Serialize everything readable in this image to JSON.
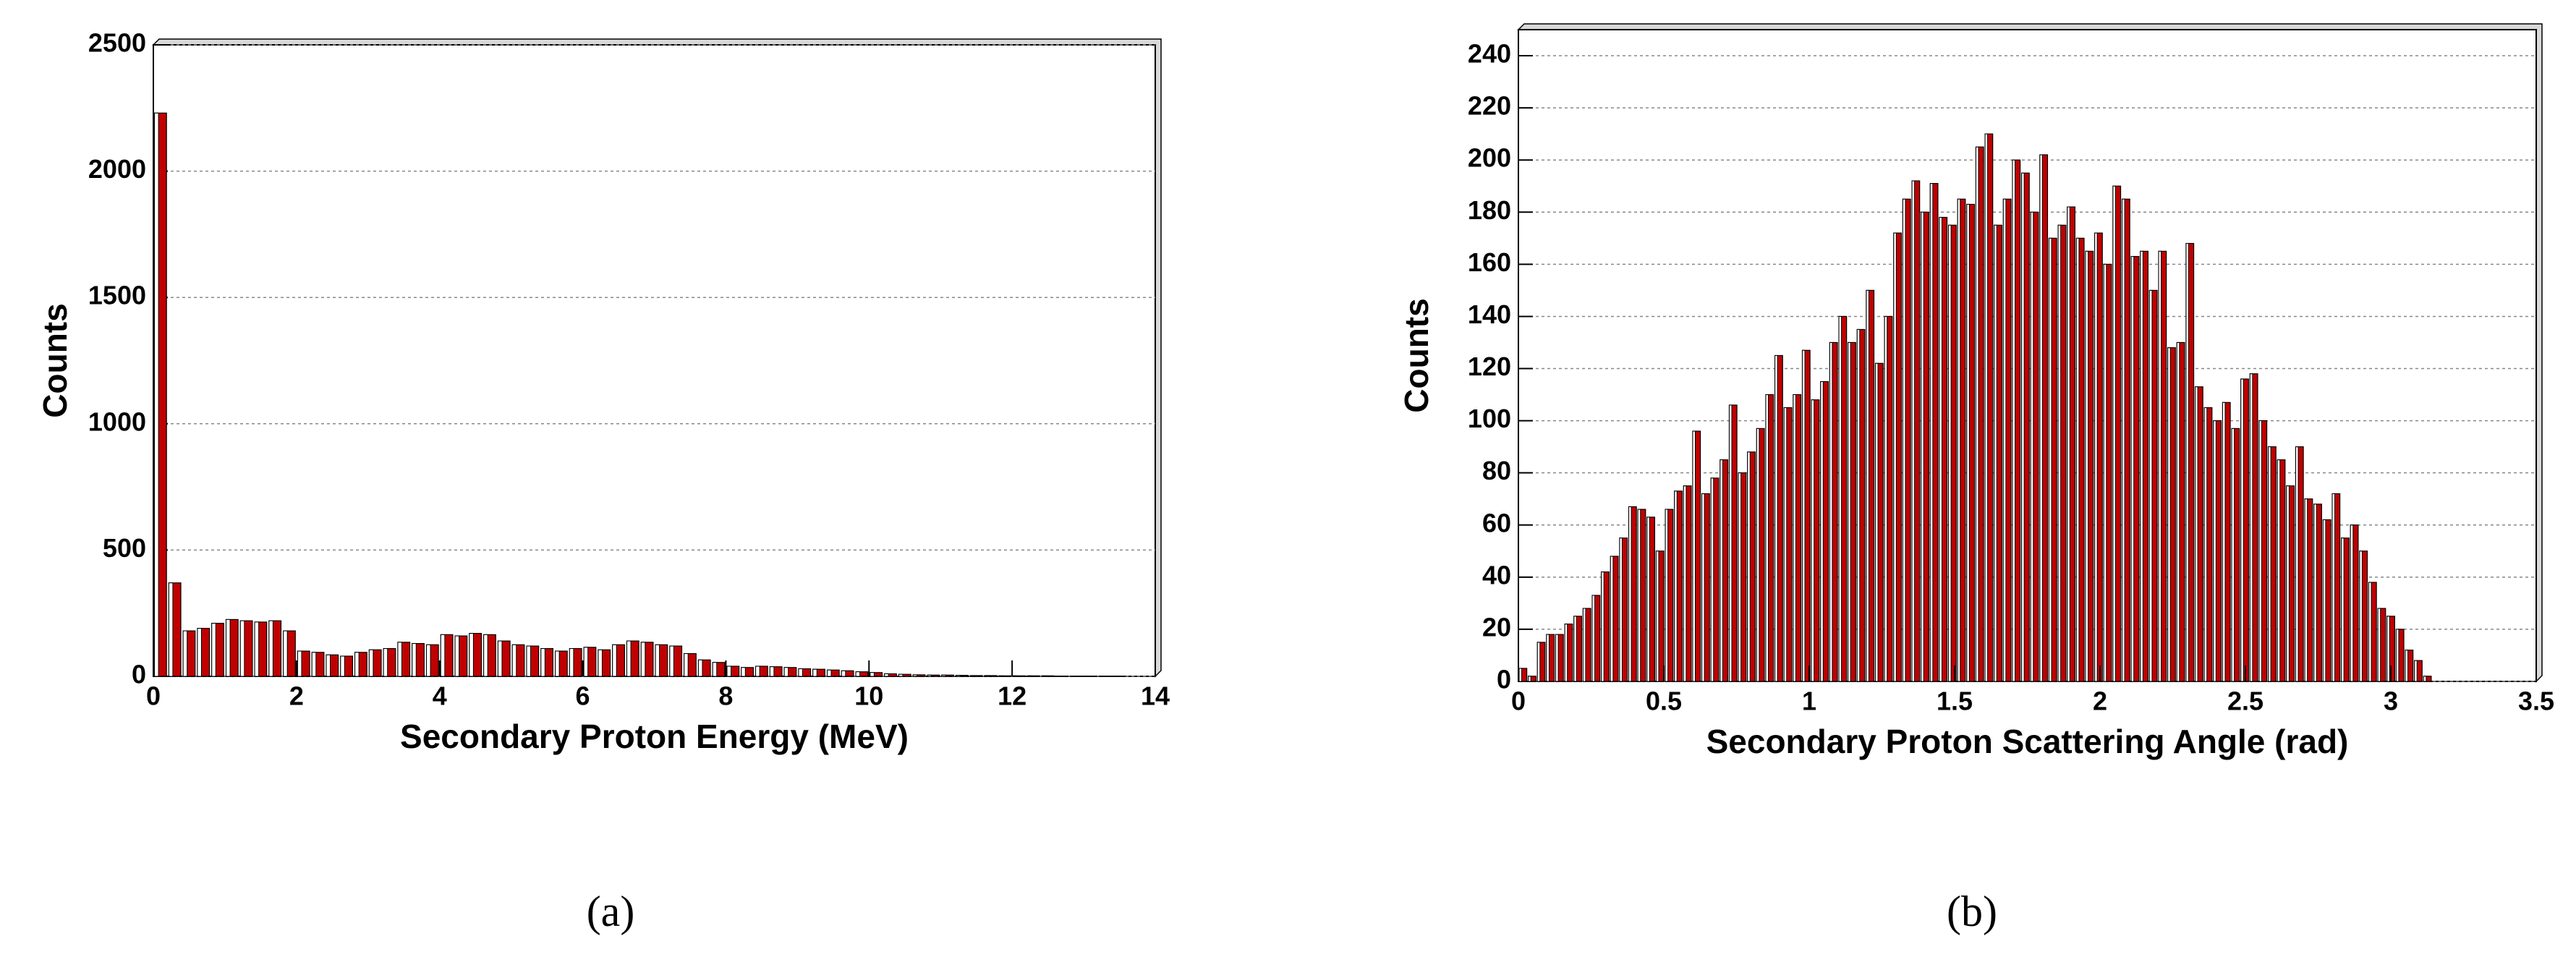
{
  "chart_data": [
    {
      "type": "histogram",
      "xlabel": "Secondary Proton Energy (MeV)",
      "ylabel": "Counts",
      "panel_label": "(a)",
      "bins": [
        0,
        0.2,
        0.4,
        0.6,
        0.8,
        1,
        1.2,
        1.4,
        1.6,
        1.8,
        2,
        2.2,
        2.4,
        2.6,
        2.8,
        3,
        3.2,
        3.4,
        3.6,
        3.8,
        4,
        4.2,
        4.4,
        4.6,
        4.8,
        5,
        5.2,
        5.4,
        5.6,
        5.8,
        6,
        6.2,
        6.4,
        6.6,
        6.8,
        7,
        7.2,
        7.4,
        7.6,
        7.8,
        8,
        8.2,
        8.4,
        8.6,
        8.8,
        9,
        9.2,
        9.4,
        9.6,
        9.8,
        10,
        10.2,
        10.4,
        10.6,
        10.8,
        11,
        11.2,
        11.4,
        11.6,
        11.8,
        12,
        12.2,
        12.4,
        12.6,
        12.8,
        13,
        13.2,
        13.4,
        13.6,
        13.8,
        14
      ],
      "values": [
        2230,
        370,
        180,
        190,
        210,
        225,
        220,
        215,
        220,
        180,
        100,
        95,
        85,
        80,
        95,
        105,
        110,
        135,
        130,
        125,
        165,
        160,
        170,
        165,
        140,
        125,
        120,
        110,
        100,
        110,
        115,
        105,
        125,
        140,
        135,
        125,
        120,
        90,
        65,
        55,
        40,
        35,
        40,
        38,
        35,
        30,
        28,
        25,
        22,
        18,
        15,
        10,
        8,
        6,
        5,
        5,
        4,
        3,
        3,
        2,
        2,
        2,
        2,
        1,
        1,
        1,
        1,
        1,
        0,
        0
      ],
      "color": "#c00000",
      "xlim": [
        0,
        14
      ],
      "xticks": [
        0,
        2,
        4,
        6,
        8,
        10,
        12,
        14
      ],
      "ylim": [
        0,
        2500
      ],
      "yticks": [
        0,
        500,
        1000,
        1500,
        2000,
        2500
      ],
      "grid": true
    },
    {
      "type": "histogram",
      "xlabel": "Secondary Proton Scattering Angle (rad)",
      "ylabel": "Counts",
      "panel_label": "(b)",
      "bins": [
        0,
        0.0314,
        0.0628,
        0.0942,
        0.1257,
        0.1571,
        0.1885,
        0.2199,
        0.2513,
        0.2827,
        0.3142,
        0.3456,
        0.377,
        0.4084,
        0.4398,
        0.4712,
        0.5027,
        0.5341,
        0.5655,
        0.5969,
        0.6283,
        0.6597,
        0.6912,
        0.7226,
        0.754,
        0.7854,
        0.8168,
        0.8482,
        0.8796,
        0.9111,
        0.9425,
        0.9739,
        1.0053,
        1.0367,
        1.0681,
        1.0996,
        1.131,
        1.1624,
        1.1938,
        1.2252,
        1.2566,
        1.2881,
        1.3195,
        1.3509,
        1.3823,
        1.4137,
        1.4451,
        1.4765,
        1.508,
        1.5394,
        1.5708,
        1.6022,
        1.6336,
        1.665,
        1.6965,
        1.7279,
        1.7593,
        1.7907,
        1.8221,
        1.8535,
        1.885,
        1.9164,
        1.9478,
        1.9792,
        2.0106,
        2.042,
        2.0735,
        2.1049,
        2.1363,
        2.1677,
        2.1991,
        2.2305,
        2.2619,
        2.2934,
        2.3248,
        2.3562,
        2.3876,
        2.419,
        2.4504,
        2.4819,
        2.5133,
        2.5447,
        2.5761,
        2.6075,
        2.6389,
        2.6704,
        2.7018,
        2.7332,
        2.7646,
        2.796,
        2.8274,
        2.8588,
        2.8903,
        2.9217,
        2.9531,
        2.9845,
        3.0159,
        3.0473,
        3.0788,
        3.1102,
        3.1416
      ],
      "values": [
        5,
        2,
        15,
        18,
        18,
        22,
        25,
        28,
        33,
        42,
        48,
        55,
        67,
        66,
        63,
        50,
        66,
        73,
        75,
        96,
        72,
        78,
        85,
        106,
        80,
        88,
        97,
        110,
        125,
        105,
        110,
        127,
        108,
        115,
        130,
        140,
        130,
        135,
        150,
        122,
        140,
        172,
        185,
        192,
        180,
        191,
        178,
        175,
        185,
        183,
        205,
        210,
        175,
        185,
        200,
        195,
        180,
        202,
        170,
        175,
        182,
        170,
        165,
        172,
        160,
        190,
        185,
        163,
        165,
        150,
        165,
        128,
        130,
        168,
        113,
        105,
        100,
        107,
        97,
        116,
        118,
        100,
        90,
        85,
        75,
        90,
        70,
        68,
        62,
        72,
        55,
        60,
        50,
        38,
        28,
        25,
        20,
        12,
        8,
        2
      ],
      "color": "#c00000",
      "xlim": [
        0,
        3.5
      ],
      "xticks": [
        0,
        0.5,
        1,
        1.5,
        2,
        2.5,
        3,
        3.5
      ],
      "ylim": [
        0,
        250
      ],
      "yticks": [
        0,
        20,
        40,
        60,
        80,
        100,
        120,
        140,
        160,
        180,
        200,
        220,
        240
      ],
      "grid": true
    }
  ]
}
